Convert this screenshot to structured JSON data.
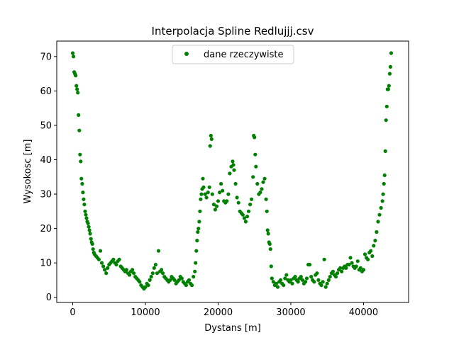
{
  "chart_data": {
    "type": "scatter",
    "title": "Interpolacja Spline Redlujjj.csv",
    "xlabel": "Dystans [m]",
    "ylabel": "Wysokosc [m]",
    "xlim": [
      -2200,
      46200
    ],
    "ylim": [
      -1.5,
      74.5
    ],
    "xticks": [
      0,
      10000,
      20000,
      30000,
      40000
    ],
    "yticks": [
      0,
      10,
      20,
      30,
      40,
      50,
      60,
      70
    ],
    "grid": false,
    "legend_position": "top-center",
    "marker_color": "#008000",
    "series": [
      {
        "name": "dane rzeczywiste",
        "points": [
          [
            0,
            71
          ],
          [
            100,
            70
          ],
          [
            200,
            65.5
          ],
          [
            300,
            65
          ],
          [
            400,
            64.5
          ],
          [
            500,
            61.5
          ],
          [
            600,
            60.5
          ],
          [
            700,
            59.5
          ],
          [
            800,
            53
          ],
          [
            900,
            48.5
          ],
          [
            1000,
            41.5
          ],
          [
            1100,
            39.5
          ],
          [
            1200,
            34.5
          ],
          [
            1300,
            33
          ],
          [
            1400,
            30.5
          ],
          [
            1500,
            28.5
          ],
          [
            1600,
            27
          ],
          [
            1700,
            25
          ],
          [
            1800,
            24
          ],
          [
            1900,
            23
          ],
          [
            2000,
            22
          ],
          [
            2100,
            21.5
          ],
          [
            2200,
            20.5
          ],
          [
            2300,
            19.5
          ],
          [
            2400,
            18.5
          ],
          [
            2500,
            17
          ],
          [
            2600,
            16
          ],
          [
            2700,
            15.5
          ],
          [
            2800,
            14
          ],
          [
            2900,
            13
          ],
          [
            3000,
            12.5
          ],
          [
            3200,
            12
          ],
          [
            3400,
            11.5
          ],
          [
            3600,
            11
          ],
          [
            3800,
            13.5
          ],
          [
            4000,
            10
          ],
          [
            4200,
            9
          ],
          [
            4400,
            8
          ],
          [
            4600,
            7
          ],
          [
            4800,
            8.5
          ],
          [
            5000,
            9.5
          ],
          [
            5200,
            10
          ],
          [
            5400,
            10.5
          ],
          [
            5600,
            11
          ],
          [
            5800,
            10
          ],
          [
            6000,
            9.5
          ],
          [
            6200,
            10.5
          ],
          [
            6400,
            11
          ],
          [
            6600,
            9
          ],
          [
            6800,
            8.5
          ],
          [
            7000,
            8
          ],
          [
            7200,
            7.5
          ],
          [
            7400,
            8
          ],
          [
            7600,
            7
          ],
          [
            7800,
            6.5
          ],
          [
            8000,
            7.5
          ],
          [
            8200,
            8
          ],
          [
            8400,
            7
          ],
          [
            8600,
            6
          ],
          [
            8800,
            5.5
          ],
          [
            9000,
            5
          ],
          [
            9200,
            4.5
          ],
          [
            9400,
            3.5
          ],
          [
            9600,
            3
          ],
          [
            9800,
            2.5
          ],
          [
            10000,
            3
          ],
          [
            10200,
            4
          ],
          [
            10400,
            3.5
          ],
          [
            10600,
            5
          ],
          [
            10800,
            6
          ],
          [
            11000,
            7
          ],
          [
            11200,
            8.5
          ],
          [
            11400,
            9.5
          ],
          [
            11600,
            7
          ],
          [
            11800,
            13.5
          ],
          [
            12000,
            7.5
          ],
          [
            12200,
            8
          ],
          [
            12400,
            7
          ],
          [
            12600,
            6
          ],
          [
            12800,
            5.5
          ],
          [
            13000,
            5
          ],
          [
            13200,
            4.5
          ],
          [
            13400,
            5
          ],
          [
            13600,
            6
          ],
          [
            13800,
            5.5
          ],
          [
            14000,
            5
          ],
          [
            14200,
            4
          ],
          [
            14400,
            4.5
          ],
          [
            14600,
            5
          ],
          [
            14800,
            6
          ],
          [
            15000,
            5.5
          ],
          [
            15200,
            4.5
          ],
          [
            15400,
            4
          ],
          [
            15600,
            3.5
          ],
          [
            15800,
            4.5
          ],
          [
            16000,
            5
          ],
          [
            16200,
            4
          ],
          [
            16400,
            3.5
          ],
          [
            16600,
            6
          ],
          [
            16800,
            7.5
          ],
          [
            16900,
            10
          ],
          [
            17000,
            13.5
          ],
          [
            17100,
            16.5
          ],
          [
            17200,
            19
          ],
          [
            17300,
            20
          ],
          [
            17400,
            22
          ],
          [
            17500,
            25
          ],
          [
            17600,
            28.5
          ],
          [
            17700,
            30
          ],
          [
            17800,
            31.5
          ],
          [
            17900,
            34.5
          ],
          [
            18000,
            32
          ],
          [
            18200,
            30
          ],
          [
            18400,
            29
          ],
          [
            18600,
            30.5
          ],
          [
            18800,
            32
          ],
          [
            18900,
            44
          ],
          [
            19000,
            47
          ],
          [
            19100,
            46
          ],
          [
            19200,
            30
          ],
          [
            19400,
            27
          ],
          [
            19600,
            25.5
          ],
          [
            19800,
            26.5
          ],
          [
            20000,
            28
          ],
          [
            20200,
            30.5
          ],
          [
            20400,
            33
          ],
          [
            20600,
            31
          ],
          [
            20800,
            28
          ],
          [
            21000,
            27.5
          ],
          [
            21200,
            28
          ],
          [
            21400,
            30
          ],
          [
            21600,
            36
          ],
          [
            21800,
            38
          ],
          [
            22000,
            39.5
          ],
          [
            22100,
            38.5
          ],
          [
            22200,
            37
          ],
          [
            22400,
            33
          ],
          [
            22600,
            29
          ],
          [
            22800,
            27.5
          ],
          [
            23000,
            25
          ],
          [
            23200,
            24.5
          ],
          [
            23400,
            24
          ],
          [
            23600,
            23
          ],
          [
            23800,
            22
          ],
          [
            24000,
            23.5
          ],
          [
            24200,
            25
          ],
          [
            24400,
            27
          ],
          [
            24600,
            28.5
          ],
          [
            24800,
            35
          ],
          [
            24900,
            47
          ],
          [
            25000,
            46.5
          ],
          [
            25100,
            41.5
          ],
          [
            25200,
            38
          ],
          [
            25400,
            33
          ],
          [
            25600,
            30
          ],
          [
            25800,
            30.5
          ],
          [
            26000,
            31.5
          ],
          [
            26200,
            33.5
          ],
          [
            26400,
            34.5
          ],
          [
            26600,
            28.5
          ],
          [
            26700,
            25
          ],
          [
            26800,
            19.5
          ],
          [
            26900,
            18.5
          ],
          [
            27000,
            16
          ],
          [
            27100,
            15.5
          ],
          [
            27200,
            14
          ],
          [
            27300,
            9
          ],
          [
            27400,
            5.5
          ],
          [
            27600,
            4.5
          ],
          [
            27800,
            3.5
          ],
          [
            28000,
            4
          ],
          [
            28200,
            3
          ],
          [
            28400,
            4.5
          ],
          [
            28600,
            5
          ],
          [
            28800,
            4
          ],
          [
            29000,
            3.5
          ],
          [
            29200,
            5.5
          ],
          [
            29400,
            6.5
          ],
          [
            29600,
            5
          ],
          [
            29800,
            4.5
          ],
          [
            30000,
            5
          ],
          [
            30200,
            4
          ],
          [
            30400,
            5.5
          ],
          [
            30600,
            6
          ],
          [
            30800,
            5
          ],
          [
            31000,
            4.5
          ],
          [
            31200,
            5.5
          ],
          [
            31400,
            6
          ],
          [
            31600,
            5
          ],
          [
            31800,
            4
          ],
          [
            32000,
            4.5
          ],
          [
            32200,
            5.5
          ],
          [
            32400,
            9.5
          ],
          [
            32600,
            9.5
          ],
          [
            32800,
            6
          ],
          [
            33000,
            5
          ],
          [
            33200,
            4.5
          ],
          [
            33400,
            6.5
          ],
          [
            33600,
            7
          ],
          [
            33800,
            5
          ],
          [
            34000,
            4
          ],
          [
            34200,
            3.5
          ],
          [
            34400,
            4.5
          ],
          [
            34600,
            11
          ],
          [
            34800,
            3
          ],
          [
            35000,
            4
          ],
          [
            35200,
            5
          ],
          [
            35400,
            6
          ],
          [
            35600,
            7
          ],
          [
            35800,
            7.5
          ],
          [
            36000,
            6.5
          ],
          [
            36200,
            6
          ],
          [
            36400,
            7
          ],
          [
            36600,
            8
          ],
          [
            36800,
            8.5
          ],
          [
            37000,
            7.5
          ],
          [
            37200,
            8.5
          ],
          [
            37400,
            9
          ],
          [
            37600,
            8.5
          ],
          [
            37800,
            9.5
          ],
          [
            38000,
            9.5
          ],
          [
            38200,
            11.5
          ],
          [
            38400,
            10
          ],
          [
            38600,
            9
          ],
          [
            38800,
            8.5
          ],
          [
            39000,
            9
          ],
          [
            39200,
            10.5
          ],
          [
            39400,
            8
          ],
          [
            39600,
            8.5
          ],
          [
            39800,
            7.5
          ],
          [
            40000,
            8
          ],
          [
            40200,
            12.5
          ],
          [
            40400,
            11.5
          ],
          [
            40600,
            11
          ],
          [
            40800,
            13
          ],
          [
            41000,
            13.5
          ],
          [
            41200,
            12
          ],
          [
            41400,
            15
          ],
          [
            41600,
            16.5
          ],
          [
            41800,
            19
          ],
          [
            42000,
            22
          ],
          [
            42200,
            24
          ],
          [
            42400,
            26
          ],
          [
            42600,
            28
          ],
          [
            42700,
            30
          ],
          [
            42800,
            33
          ],
          [
            42900,
            35.5
          ],
          [
            43000,
            42.5
          ],
          [
            43100,
            51.5
          ],
          [
            43200,
            55.5
          ],
          [
            43300,
            60.5
          ],
          [
            43400,
            60.5
          ],
          [
            43500,
            61.5
          ],
          [
            43600,
            65
          ],
          [
            43700,
            67
          ],
          [
            43800,
            71
          ]
        ]
      }
    ]
  }
}
